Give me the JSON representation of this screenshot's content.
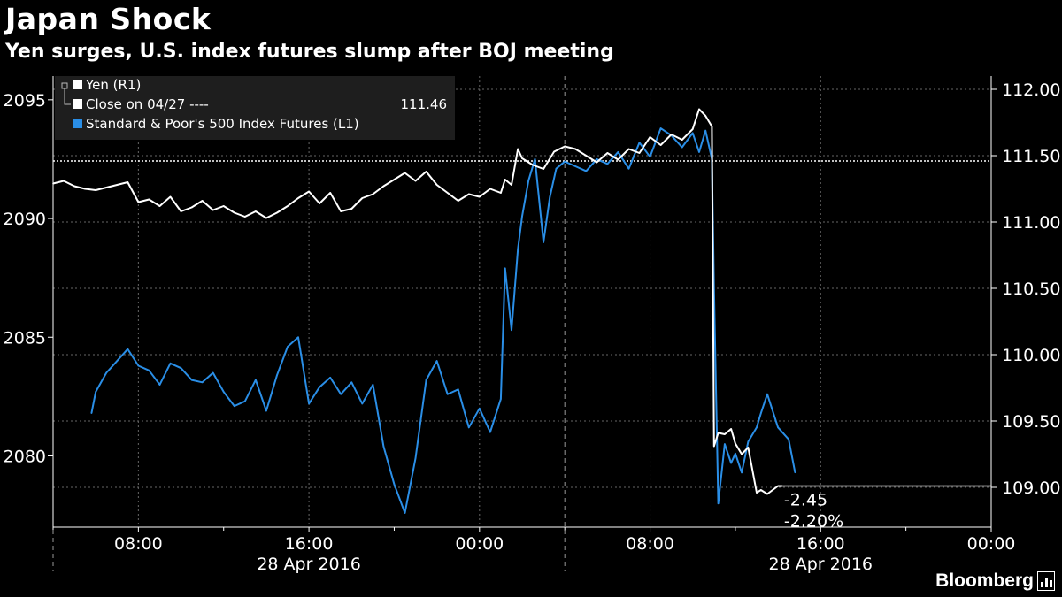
{
  "header": {
    "title": "Japan Shock",
    "subtitle": "Yen surges, U.S. index futures slump after BOJ meeting"
  },
  "legend": {
    "items": [
      {
        "label": "Yen (R1)",
        "color": "#ffffff",
        "value": ""
      },
      {
        "label": "Close on 04/27 ----",
        "color": "#ffffff",
        "value": "111.46"
      },
      {
        "label": "Standard & Poor's 500 Index Futures (L1)",
        "color": "#2a8ee6",
        "value": ""
      }
    ]
  },
  "annotations": {
    "change_abs": "-2.45",
    "change_pct": "-2.20%"
  },
  "brand": {
    "name": "Bloomberg",
    "icon": "bloomberg-terminal-icon"
  },
  "chart_data": {
    "type": "line",
    "title": "Japan Shock",
    "subtitle": "Yen surges, U.S. index futures slump after BOJ meeting",
    "x_tick_labels": [
      "08:00",
      "16:00",
      "00:00",
      "08:00",
      "16:00",
      "00:00"
    ],
    "x_date_labels": [
      "28 Apr 2016",
      "28 Apr 2016"
    ],
    "left_axis": {
      "ticks": [
        2080,
        2085,
        2090,
        2095
      ],
      "range": [
        2077,
        2096
      ]
    },
    "right_axis": {
      "ticks": [
        "109.00",
        "109.50",
        "110.00",
        "110.50",
        "111.00",
        "111.50",
        "112.00"
      ],
      "range": [
        108.7,
        112.1
      ]
    },
    "x_range_hours": [
      4,
      48
    ],
    "reference_line": {
      "label": "Close on 04/27",
      "value": 111.46,
      "axis": "right"
    },
    "last_value_line": {
      "value": 109.01,
      "axis": "right"
    },
    "series": [
      {
        "name": "Standard & Poor's 500 Index Futures (L1)",
        "axis": "left",
        "color": "#2a8ee6",
        "x": [
          5.8,
          6.0,
          6.5,
          7.0,
          7.5,
          8.0,
          8.5,
          9.0,
          9.5,
          10.0,
          10.5,
          11.0,
          11.5,
          12.0,
          12.5,
          13.0,
          13.5,
          14.0,
          14.5,
          15.0,
          15.5,
          16.0,
          16.5,
          17.0,
          17.5,
          18.0,
          18.5,
          19.0,
          19.5,
          20.0,
          20.5,
          21.0,
          21.5,
          22.0,
          22.5,
          23.0,
          23.5,
          24.0,
          24.5,
          25.0,
          25.2,
          25.5,
          25.8,
          26.0,
          26.3,
          26.6,
          27.0,
          27.3,
          27.6,
          28.0,
          28.5,
          29.0,
          29.5,
          30.0,
          30.5,
          31.0,
          31.5,
          32.0,
          32.5,
          33.0,
          33.5,
          34.0,
          34.3,
          34.6,
          34.9,
          35.0,
          35.2,
          35.5,
          35.8,
          36.0,
          36.3,
          36.6,
          37.0,
          37.2,
          37.5,
          38.0,
          38.5,
          38.8
        ],
        "values": [
          2081.8,
          2082.7,
          2083.5,
          2084.0,
          2084.5,
          2083.8,
          2083.6,
          2083.0,
          2083.9,
          2083.7,
          2083.2,
          2083.1,
          2083.5,
          2082.7,
          2082.1,
          2082.3,
          2083.2,
          2081.9,
          2083.4,
          2084.6,
          2085.0,
          2082.2,
          2082.9,
          2083.3,
          2082.6,
          2083.1,
          2082.2,
          2083.0,
          2080.4,
          2078.8,
          2077.6,
          2079.9,
          2083.2,
          2084.0,
          2082.6,
          2082.8,
          2081.2,
          2082.0,
          2081.0,
          2082.4,
          2087.9,
          2085.3,
          2088.7,
          2090.1,
          2091.6,
          2092.5,
          2089.0,
          2090.9,
          2092.1,
          2092.4,
          2092.2,
          2092.0,
          2092.5,
          2092.3,
          2092.8,
          2092.1,
          2093.2,
          2092.6,
          2093.8,
          2093.5,
          2093.0,
          2093.6,
          2092.8,
          2093.7,
          2092.5,
          2087.0,
          2078.0,
          2080.5,
          2079.7,
          2080.1,
          2079.3,
          2080.6,
          2081.2,
          2081.8,
          2082.6,
          2081.2,
          2080.7,
          2079.3
        ],
        "last": 2079.3
      },
      {
        "name": "Yen (R1)",
        "axis": "right",
        "color": "#ffffff",
        "x": [
          4.0,
          4.5,
          5.0,
          5.5,
          6.0,
          6.5,
          7.0,
          7.5,
          8.0,
          8.5,
          9.0,
          9.5,
          10.0,
          10.5,
          11.0,
          11.5,
          12.0,
          12.5,
          13.0,
          13.5,
          14.0,
          14.5,
          15.0,
          15.5,
          16.0,
          16.5,
          17.0,
          17.5,
          18.0,
          18.5,
          19.0,
          19.5,
          20.0,
          20.5,
          21.0,
          21.5,
          22.0,
          22.5,
          23.0,
          23.5,
          24.0,
          24.5,
          25.0,
          25.2,
          25.5,
          25.8,
          26.0,
          26.5,
          27.0,
          27.5,
          28.0,
          28.5,
          29.0,
          29.5,
          30.0,
          30.5,
          31.0,
          31.5,
          32.0,
          32.5,
          33.0,
          33.5,
          34.0,
          34.3,
          34.6,
          34.9,
          35.0,
          35.2,
          35.5,
          35.8,
          36.0,
          36.3,
          36.6,
          37.0,
          37.2,
          37.5,
          38.0,
          38.2
        ],
        "values": [
          111.29,
          111.31,
          111.27,
          111.25,
          111.24,
          111.26,
          111.28,
          111.3,
          111.15,
          111.17,
          111.12,
          111.19,
          111.08,
          111.11,
          111.16,
          111.09,
          111.12,
          111.07,
          111.04,
          111.08,
          111.03,
          111.07,
          111.12,
          111.18,
          111.23,
          111.14,
          111.22,
          111.08,
          111.1,
          111.18,
          111.21,
          111.27,
          111.32,
          111.37,
          111.31,
          111.38,
          111.28,
          111.22,
          111.16,
          111.21,
          111.19,
          111.25,
          111.22,
          111.32,
          111.28,
          111.55,
          111.48,
          111.43,
          111.4,
          111.53,
          111.57,
          111.55,
          111.5,
          111.45,
          111.52,
          111.47,
          111.55,
          111.52,
          111.64,
          111.58,
          111.66,
          111.62,
          111.7,
          111.85,
          111.8,
          111.72,
          109.31,
          109.41,
          109.4,
          109.44,
          109.33,
          109.25,
          109.3,
          108.96,
          108.98,
          108.95,
          109.01,
          109.01
        ],
        "last": 109.01
      }
    ],
    "grid": true
  }
}
